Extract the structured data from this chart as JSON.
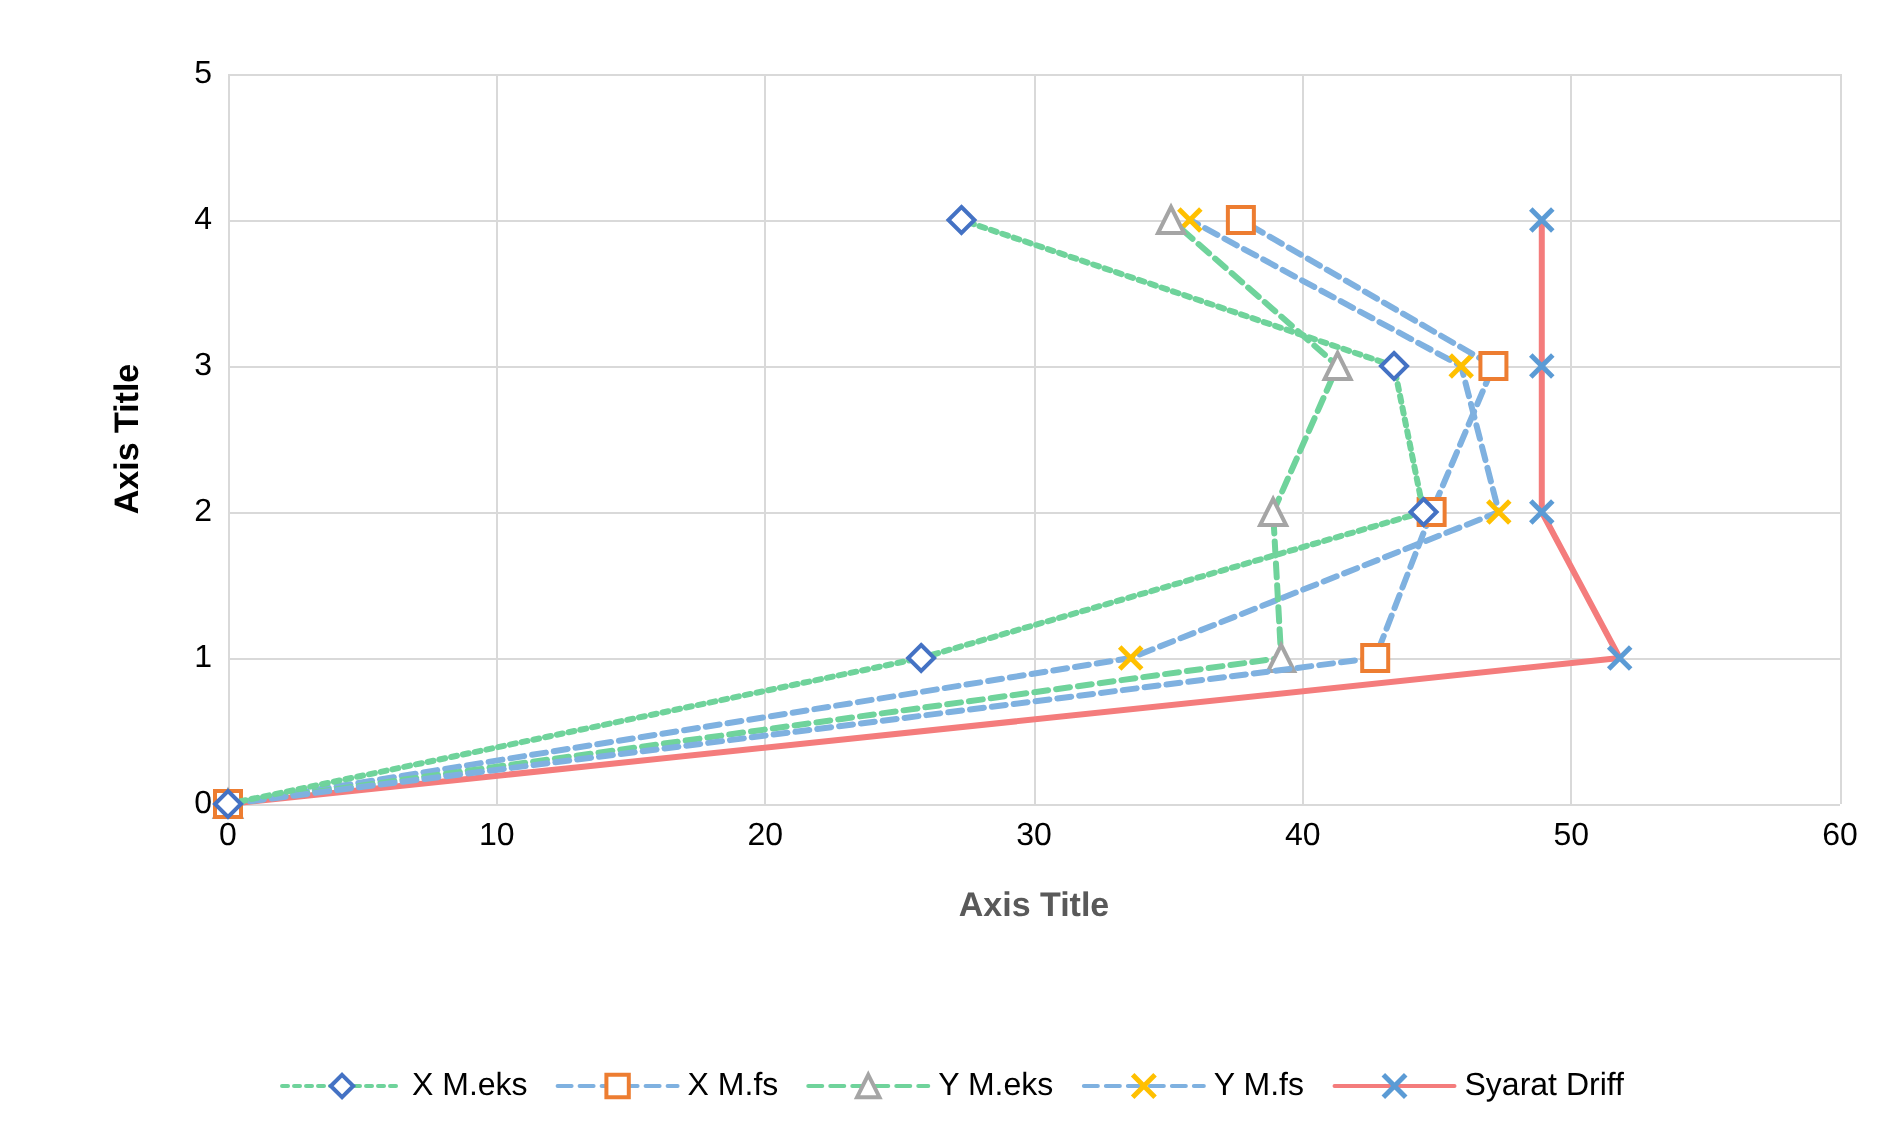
{
  "chart_data": {
    "type": "line",
    "xlabel": "Axis Title",
    "ylabel": "Axis Title",
    "xlim": [
      0,
      60
    ],
    "xticks": [
      0,
      10,
      20,
      30,
      40,
      50,
      60
    ],
    "ylim": [
      0,
      5
    ],
    "yticks": [
      0,
      1,
      2,
      3,
      4,
      5
    ],
    "grid": true,
    "legend": "bottom",
    "series": [
      {
        "name": "X M.eks",
        "color": "#6fd39b",
        "colors": [
          "#4472c4",
          "#4472c4",
          "#4472c4",
          "#4472c4",
          "#4472c4"
        ],
        "marker": "diamond",
        "line_style": "dotted",
        "x": [
          0,
          25.8,
          44.5,
          43.4,
          27.3
        ],
        "values": [
          0,
          1,
          2,
          3,
          4
        ]
      },
      {
        "name": "X M.fs",
        "color": "#7fb1e0",
        "colors": [
          "#ed7d31",
          "#ed7d31",
          "#ed7d31",
          "#ed7d31",
          "#ed7d31"
        ],
        "marker": "square",
        "line_style": "dashed",
        "x": [
          0,
          42.7,
          44.8,
          47.1,
          37.7
        ],
        "values": [
          0,
          1,
          2,
          3,
          4
        ]
      },
      {
        "name": "Y M.eks",
        "color": "#6fd39b",
        "colors": [
          "#a5a5a5",
          "#a5a5a5",
          "#a5a5a5",
          "#a5a5a5",
          "#a5a5a5"
        ],
        "marker": "triangle",
        "line_style": "dashed",
        "x": [
          0,
          39.2,
          38.9,
          41.3,
          35.1
        ],
        "values": [
          0,
          1,
          2,
          3,
          4
        ]
      },
      {
        "name": "Y M.fs",
        "color": "#7fb1e0",
        "colors": [
          "#ffc000",
          "#ffc000",
          "#ffc000",
          "#ffc000",
          "#ffc000"
        ],
        "marker": "cross",
        "line_style": "dashed",
        "x": [
          0,
          33.6,
          47.3,
          45.9,
          35.8
        ],
        "values": [
          0,
          1,
          2,
          3,
          4
        ]
      },
      {
        "name": "Syarat Driff",
        "color": "#f47c7c",
        "colors": [
          "#5b9bd5",
          "#5b9bd5",
          "#5b9bd5",
          "#5b9bd5",
          "#5b9bd5"
        ],
        "marker": "cross",
        "line_style": "solid",
        "x": [
          0,
          51.8,
          48.9,
          48.9,
          48.9
        ],
        "values": [
          0,
          1,
          2,
          3,
          4
        ]
      }
    ]
  }
}
